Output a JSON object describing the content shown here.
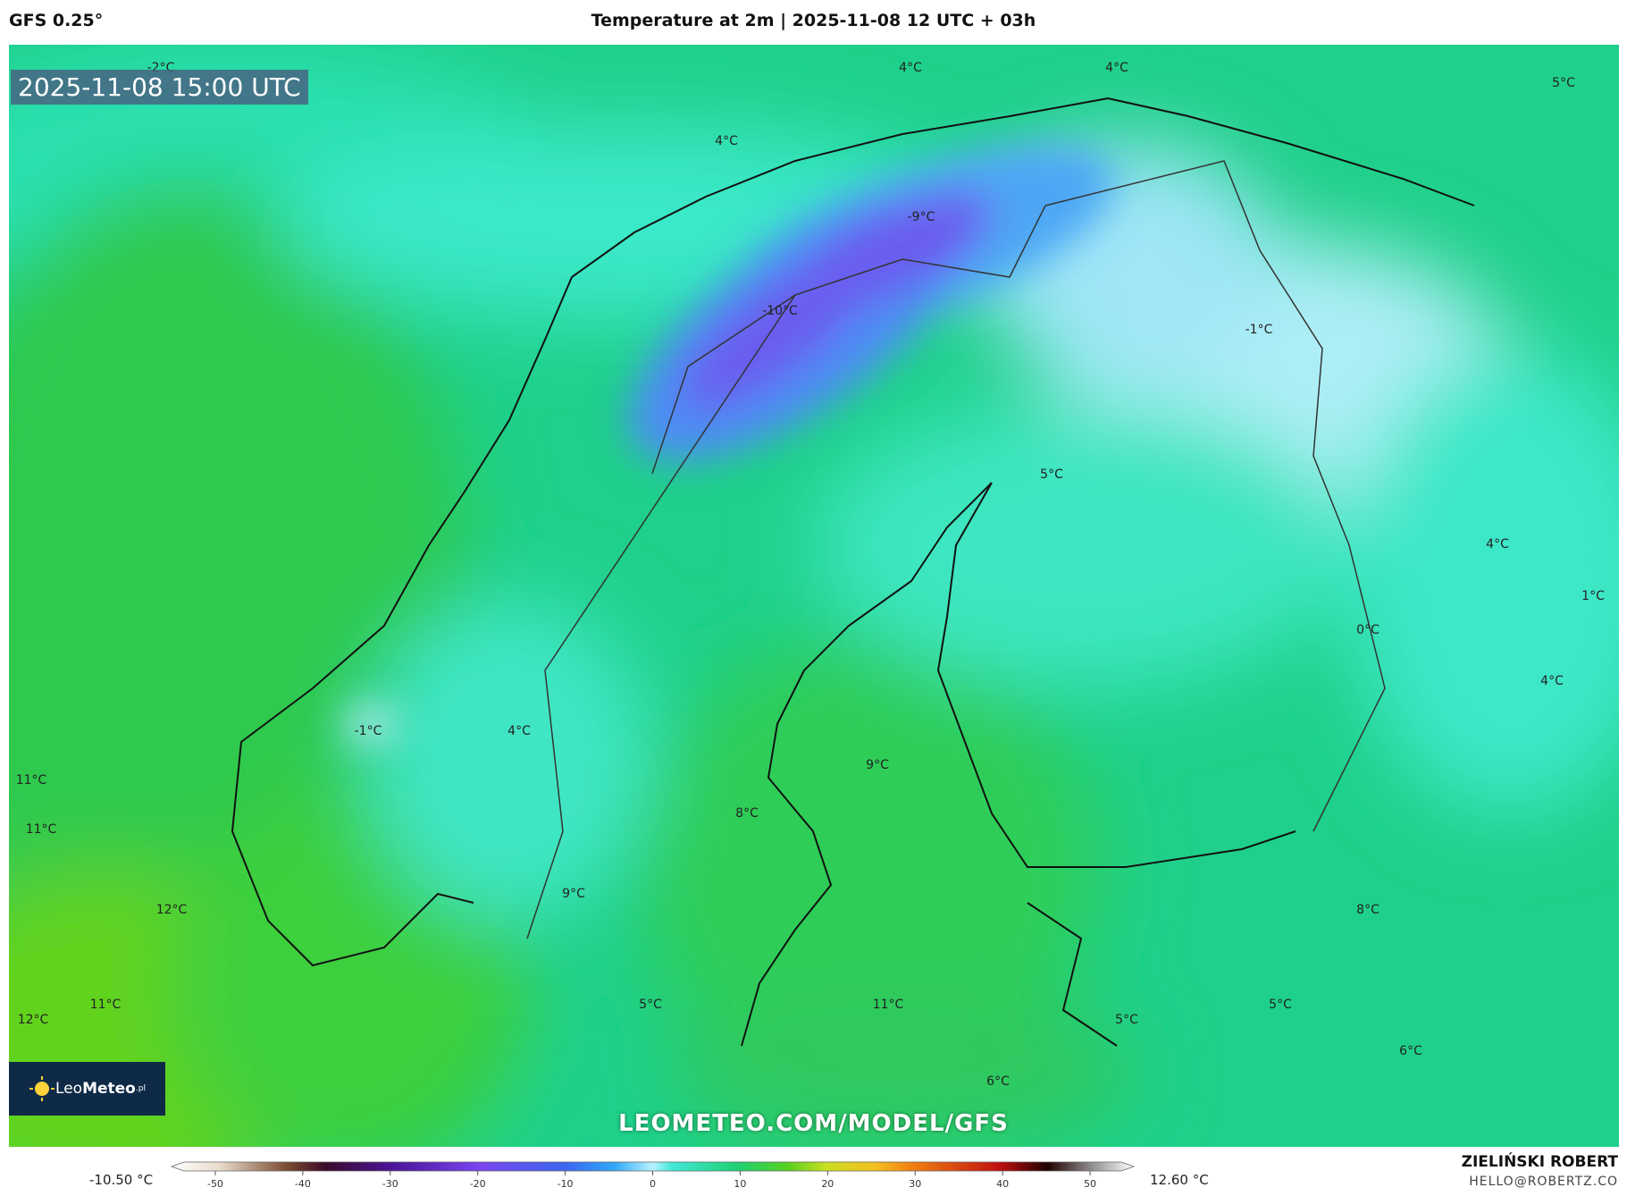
{
  "header": {
    "model": "GFS 0.25°",
    "title": "Temperature at 2m | 2025-11-08 12 UTC + 03h"
  },
  "timestamp": "2025-11-08 15:00 UTC",
  "logo": {
    "brand_light": "Leo",
    "brand_bold": "Meteo",
    "suffix": ".pl"
  },
  "url": "LEOMETEO.COM/MODEL/GFS",
  "temperature_labels": [
    "-2°C",
    "4°C",
    "4°C",
    "5°C",
    "4°C",
    "-9°C",
    "-10°C",
    "-1°C",
    "5°C",
    "4°C",
    "1°C",
    "0°C",
    "4°C",
    "-1°C",
    "4°C",
    "11°C",
    "9°C",
    "11°C",
    "8°C",
    "9°C",
    "12°C",
    "8°C",
    "11°C",
    "5°C",
    "11°C",
    "5°C",
    "12°C",
    "5°C",
    "6°C",
    "6°C"
  ],
  "colorbar": {
    "min_label": "-10.50 °C",
    "max_label": "12.60 °C",
    "lim": [
      -55,
      55
    ],
    "ticks": [
      -50,
      -40,
      -30,
      -20,
      -10,
      0,
      10,
      20,
      30,
      40,
      50
    ]
  },
  "author": {
    "name": "ZIELIŃSKI ROBERT",
    "email": "HELLO@ROBERTZ.CO"
  }
}
